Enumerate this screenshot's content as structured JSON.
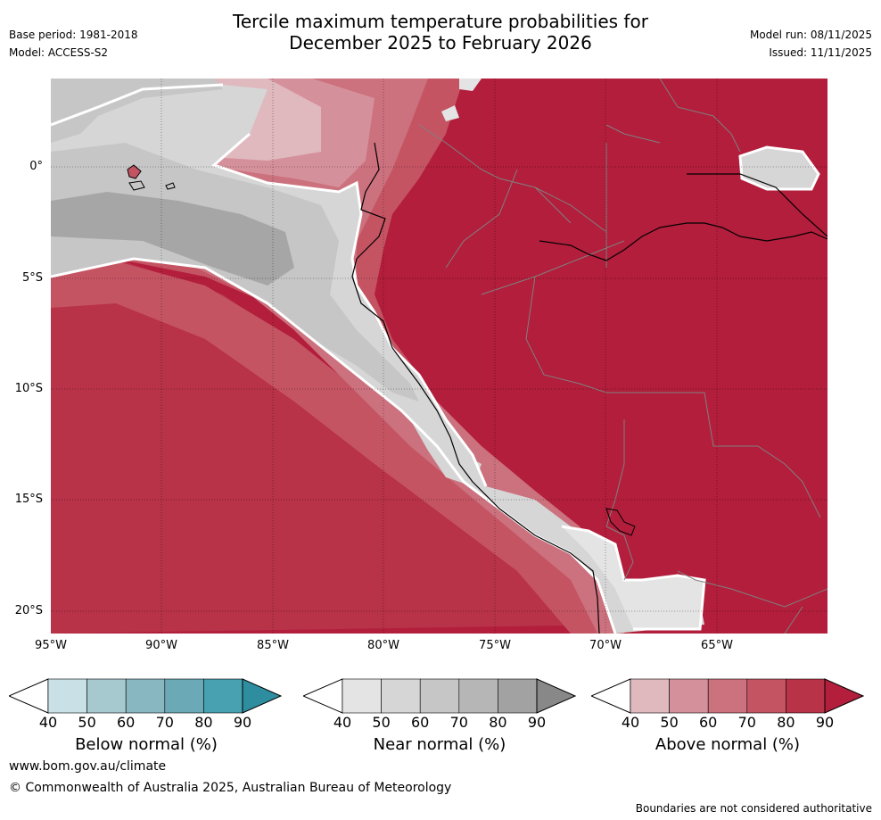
{
  "title": {
    "line1": "Tercile maximum temperature probabilities for",
    "line2": "December 2025 to February 2026"
  },
  "meta": {
    "base_period": "Base period: 1981-2018",
    "model": "Model: ACCESS-S2",
    "model_run": "Model run: 08/11/2025",
    "issued": "Issued: 11/11/2025"
  },
  "map": {
    "lat_labels": [
      "0°",
      "5°S",
      "10°S",
      "15°S",
      "20°S"
    ],
    "lon_labels": [
      "95°W",
      "90°W",
      "85°W",
      "80°W",
      "75°W",
      "70°W",
      "65°W"
    ]
  },
  "legends": [
    {
      "title": "Below normal (%)",
      "ticks": [
        "40",
        "50",
        "60",
        "70",
        "80",
        "90"
      ],
      "colors": [
        "#ffffff",
        "#c9e1e6",
        "#a6c8cf",
        "#88b6c1",
        "#6aa9b5",
        "#47a1b0",
        "#2e8ea0"
      ]
    },
    {
      "title": "Near normal (%)",
      "ticks": [
        "40",
        "50",
        "60",
        "70",
        "80",
        "90"
      ],
      "colors": [
        "#ffffff",
        "#e4e4e4",
        "#d6d6d6",
        "#c6c6c6",
        "#b6b6b6",
        "#a2a2a2",
        "#888888"
      ]
    },
    {
      "title": "Above normal (%)",
      "ticks": [
        "40",
        "50",
        "60",
        "70",
        "80",
        "90"
      ],
      "colors": [
        "#ffffff",
        "#e0b9bf",
        "#d5919b",
        "#cc717e",
        "#c55463",
        "#b83248",
        "#b21e3b"
      ]
    }
  ],
  "footer": {
    "url": "www.bom.gov.au/climate",
    "copyright": "© Commonwealth of Australia 2025, Australian Bureau of Meteorology",
    "note": "Boundaries are not considered authoritative"
  }
}
